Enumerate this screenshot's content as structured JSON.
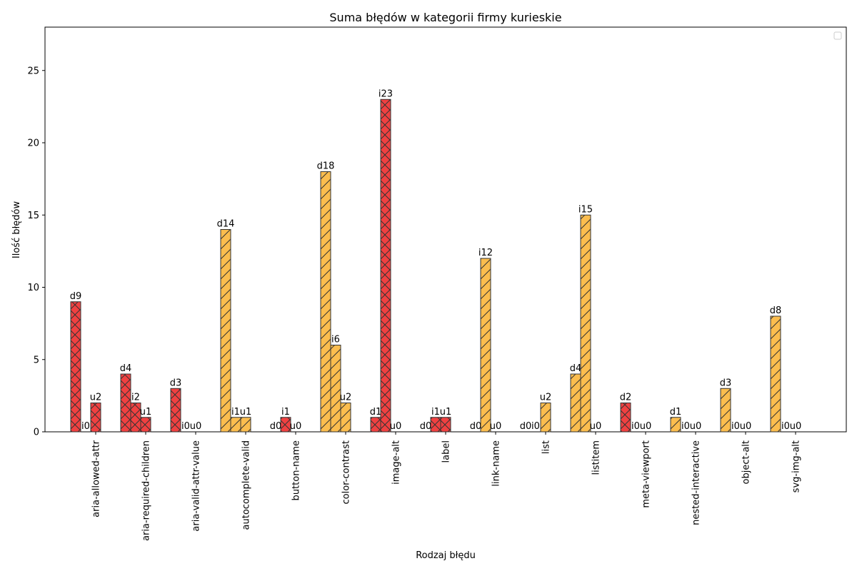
{
  "chart_data": {
    "type": "bar",
    "title": "Suma błędów w kategorii firmy kurieskie",
    "xlabel": "Rodzaj błędu",
    "ylabel": "Ilość błędów",
    "ylim": [
      0,
      28
    ],
    "yticks": [
      0,
      5,
      10,
      15,
      20,
      25
    ],
    "grid": false,
    "legend": "top-right",
    "colors": {
      "red": "#f04141",
      "orange": "#fbbd4e",
      "edge": "#333333"
    },
    "categories": [
      "aria-allowed-attr",
      "aria-required-children",
      "aria-valid-attr-value",
      "autocomplete-valid",
      "button-name",
      "color-contrast",
      "image-alt",
      "label",
      "link-name",
      "list",
      "listitem",
      "meta-viewport",
      "nested-interactive",
      "object-alt",
      "svg-img-alt"
    ],
    "group_colors": [
      "red",
      "red",
      "red",
      "orange",
      "red",
      "orange",
      "red",
      "red",
      "orange",
      "orange",
      "orange",
      "red",
      "orange",
      "orange",
      "orange"
    ],
    "series": [
      {
        "prefix": "d",
        "values": [
          9,
          4,
          3,
          14,
          0,
          18,
          1,
          0,
          0,
          0,
          4,
          2,
          1,
          3,
          8
        ]
      },
      {
        "prefix": "i",
        "values": [
          0,
          2,
          0,
          1,
          1,
          6,
          23,
          1,
          12,
          0,
          15,
          0,
          0,
          0,
          0
        ]
      },
      {
        "prefix": "u",
        "values": [
          2,
          1,
          0,
          1,
          0,
          2,
          0,
          1,
          0,
          2,
          0,
          0,
          0,
          0,
          0
        ]
      }
    ]
  }
}
